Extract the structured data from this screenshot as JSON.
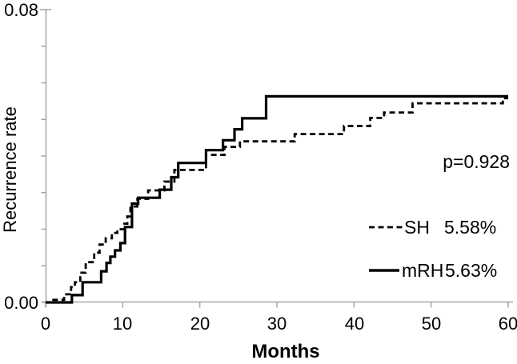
{
  "chart_data": {
    "type": "line",
    "subtype": "kaplan-meier-step",
    "title": "",
    "xlabel": "Months",
    "ylabel": "Recurrence rate",
    "xlim": [
      0,
      60
    ],
    "ylim": [
      0.0,
      0.08
    ],
    "x_tick_interval": 10,
    "y_minor_tick_interval": 0.01,
    "grid": "off",
    "legend_position": "right-middle",
    "x_tick_labels": [
      "0",
      "10",
      "20",
      "30",
      "40",
      "50",
      "60"
    ],
    "y_label_top": "0.08",
    "y_label_bottom": "0.00",
    "annotation_p_value": "p=0.928",
    "axis_color": "#a6a6a6",
    "curve_color": "#000000",
    "legend": [
      {
        "label": "SH",
        "value": "5.58%",
        "style": "dashed"
      },
      {
        "label": "mRH",
        "value": "5.63%",
        "style": "solid"
      }
    ],
    "series": [
      {
        "name": "SH",
        "style": "dashed",
        "final_rate_percent": 5.58,
        "unit": "percent_recurrence",
        "points": [
          [
            0,
            0
          ],
          [
            0.6,
            0.07
          ],
          [
            2.4,
            0.22
          ],
          [
            3.3,
            0.42
          ],
          [
            3.8,
            0.55
          ],
          [
            4.5,
            0.81
          ],
          [
            5.2,
            1.1
          ],
          [
            6.3,
            1.36
          ],
          [
            7.0,
            1.58
          ],
          [
            7.8,
            1.75
          ],
          [
            8.6,
            1.9
          ],
          [
            9.3,
            2.0
          ],
          [
            10.2,
            2.15
          ],
          [
            10.6,
            2.35
          ],
          [
            11.0,
            2.62
          ],
          [
            11.9,
            2.83
          ],
          [
            13.3,
            3.06
          ],
          [
            15.4,
            3.3
          ],
          [
            16.7,
            3.62
          ],
          [
            20.8,
            4.03
          ],
          [
            23.2,
            4.25
          ],
          [
            25.2,
            4.4
          ],
          [
            32.3,
            4.6
          ],
          [
            38.7,
            4.82
          ],
          [
            42.1,
            5.04
          ],
          [
            43.9,
            5.19
          ],
          [
            47.6,
            5.44
          ],
          [
            59.3,
            5.58
          ],
          [
            60,
            5.58
          ]
        ]
      },
      {
        "name": "mRH",
        "style": "solid",
        "final_rate_percent": 5.63,
        "unit": "percent_recurrence",
        "points": [
          [
            0,
            0
          ],
          [
            3.4,
            0.2
          ],
          [
            4.8,
            0.55
          ],
          [
            7.2,
            0.85
          ],
          [
            7.9,
            1.08
          ],
          [
            8.4,
            1.25
          ],
          [
            9.0,
            1.42
          ],
          [
            9.7,
            1.62
          ],
          [
            10.3,
            2.06
          ],
          [
            11.2,
            2.7
          ],
          [
            12.0,
            2.86
          ],
          [
            14.8,
            3.08
          ],
          [
            16.3,
            3.42
          ],
          [
            17.2,
            3.81
          ],
          [
            20.8,
            4.16
          ],
          [
            23.0,
            4.43
          ],
          [
            24.5,
            4.73
          ],
          [
            25.5,
            5.03
          ],
          [
            28.6,
            5.63
          ],
          [
            60,
            5.63
          ]
        ]
      }
    ]
  }
}
